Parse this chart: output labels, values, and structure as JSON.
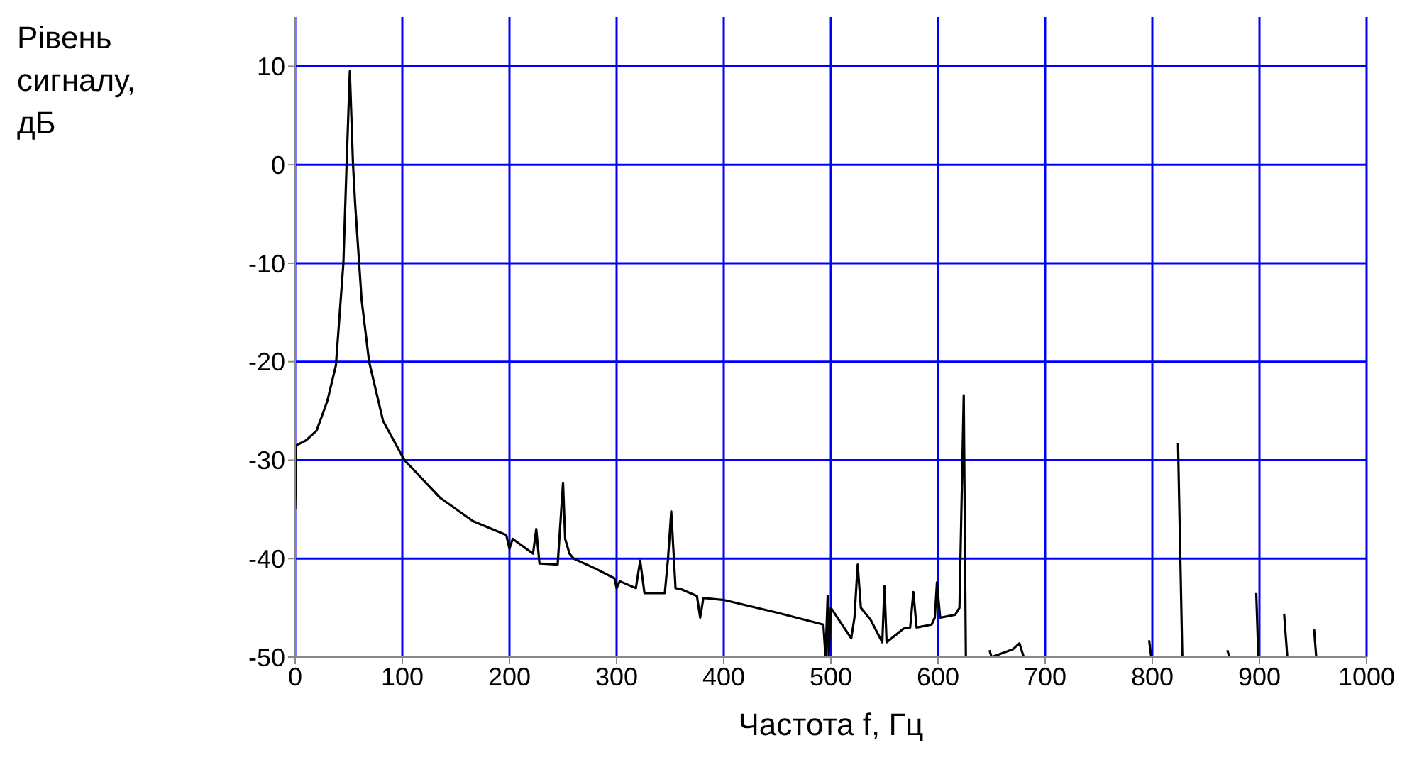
{
  "chart_data": {
    "type": "line",
    "xlabel": "Частота f, Гц",
    "ylabel": "Рівень сигналу, дБ",
    "x": [
      0,
      1,
      10,
      20,
      30,
      38,
      45,
      48,
      51,
      54,
      56,
      62,
      69,
      82,
      102,
      135,
      166,
      197,
      200,
      203,
      222,
      225,
      228,
      245,
      250,
      252,
      256,
      260,
      280,
      298,
      300,
      303,
      318,
      322,
      326,
      345,
      348,
      351,
      355,
      360,
      375,
      378,
      381,
      400,
      450,
      493,
      495,
      497,
      498,
      500,
      519,
      522,
      525,
      528,
      537,
      548,
      550,
      552,
      568,
      574,
      577,
      580,
      594,
      597,
      599,
      602,
      616,
      620,
      624,
      626,
      645,
      648,
      650,
      670,
      676,
      680,
      795,
      797,
      799,
      820,
      824,
      828,
      868,
      870,
      872,
      895,
      897,
      899,
      920,
      923,
      926,
      949,
      951,
      953
    ],
    "series": [
      {
        "color": "#000000",
        "values": [
          -35,
          -28.5,
          -28,
          -27,
          -24,
          -20.4,
          -10,
          0,
          9.5,
          0,
          -4,
          -13.7,
          -20,
          -26,
          -30,
          -33.8,
          -36.2,
          -37.6,
          -39,
          -38,
          -39.5,
          -37,
          -40.5,
          -40.6,
          -32.3,
          -38,
          -39.5,
          -40,
          -41,
          -42,
          -43,
          -42.3,
          -43,
          -40.2,
          -43.5,
          -43.5,
          -40,
          -35.2,
          -43,
          -43.1,
          -43.8,
          -46,
          -44,
          -44.2,
          -45.5,
          -46.7,
          -50,
          -43.8,
          -50,
          -45,
          -48.1,
          -46,
          -40.6,
          -45,
          -46.2,
          -48.5,
          -42.8,
          -48.5,
          -47.1,
          -47,
          -43.4,
          -47,
          -46.7,
          -46,
          -42.4,
          -46,
          -45.7,
          -45,
          -23.4,
          -50,
          null,
          -49.3,
          -50,
          -49.2,
          -48.6,
          -50,
          null,
          -48.3,
          -50,
          null,
          -28.3,
          -50,
          null,
          -49.3,
          -50,
          null,
          -43.5,
          -50,
          null,
          -45.6,
          -50,
          null,
          -47.2,
          -50
        ]
      }
    ],
    "xlim": [
      0,
      1000
    ],
    "xticks": [
      0,
      100,
      200,
      300,
      400,
      500,
      600,
      700,
      800,
      900,
      1000
    ],
    "ylim": [
      -50,
      15
    ],
    "yticks": [
      -50,
      -40,
      -30,
      -20,
      -10,
      0,
      10
    ],
    "grid": true,
    "marker": "none",
    "line_style": "solid"
  }
}
